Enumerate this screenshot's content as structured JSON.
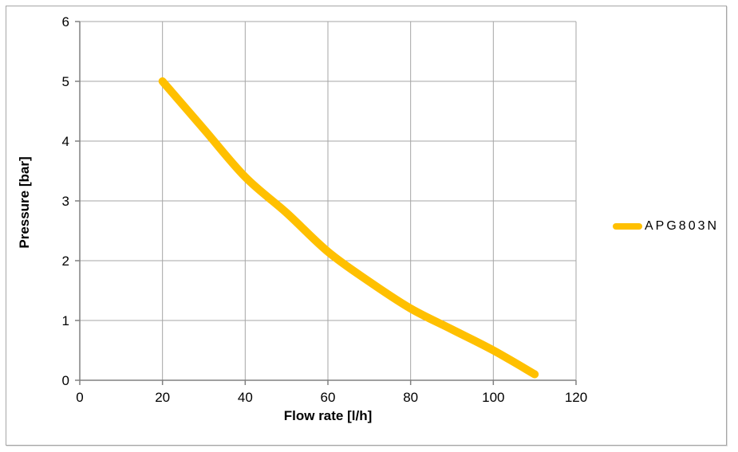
{
  "page": {
    "background": "#ffffff"
  },
  "chart_data": {
    "type": "line",
    "title": "",
    "xlabel": "Flow rate [l/h]",
    "ylabel": "Pressure [bar]",
    "xlim": [
      0,
      120
    ],
    "ylim": [
      0,
      6
    ],
    "x_ticks": [
      0,
      20,
      40,
      60,
      80,
      100,
      120
    ],
    "y_ticks": [
      0,
      1,
      2,
      3,
      4,
      5,
      6
    ],
    "grid": true,
    "legend_position": "right-middle",
    "colors": {
      "grid": "#a6a6a6",
      "axis": "#808080",
      "text": "#000000",
      "frame_border": "#a6a6a6"
    },
    "series": [
      {
        "name": "APG803N",
        "color": "#FFC000",
        "line_width": 10,
        "points": [
          [
            20,
            5.0
          ],
          [
            30,
            4.2
          ],
          [
            40,
            3.4
          ],
          [
            50,
            2.8
          ],
          [
            60,
            2.15
          ],
          [
            70,
            1.65
          ],
          [
            80,
            1.2
          ],
          [
            90,
            0.85
          ],
          [
            100,
            0.5
          ],
          [
            110,
            0.1
          ]
        ]
      }
    ]
  }
}
